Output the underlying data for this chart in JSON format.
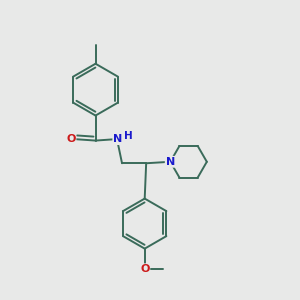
{
  "bg_color": "#e8e9e8",
  "bond_color": "#3a6b5a",
  "atom_colors": {
    "N": "#1a1acc",
    "O": "#cc1a1a",
    "C": "#3a6b5a"
  },
  "bond_width": 1.4,
  "figsize": [
    3.0,
    3.0
  ],
  "dpi": 100
}
